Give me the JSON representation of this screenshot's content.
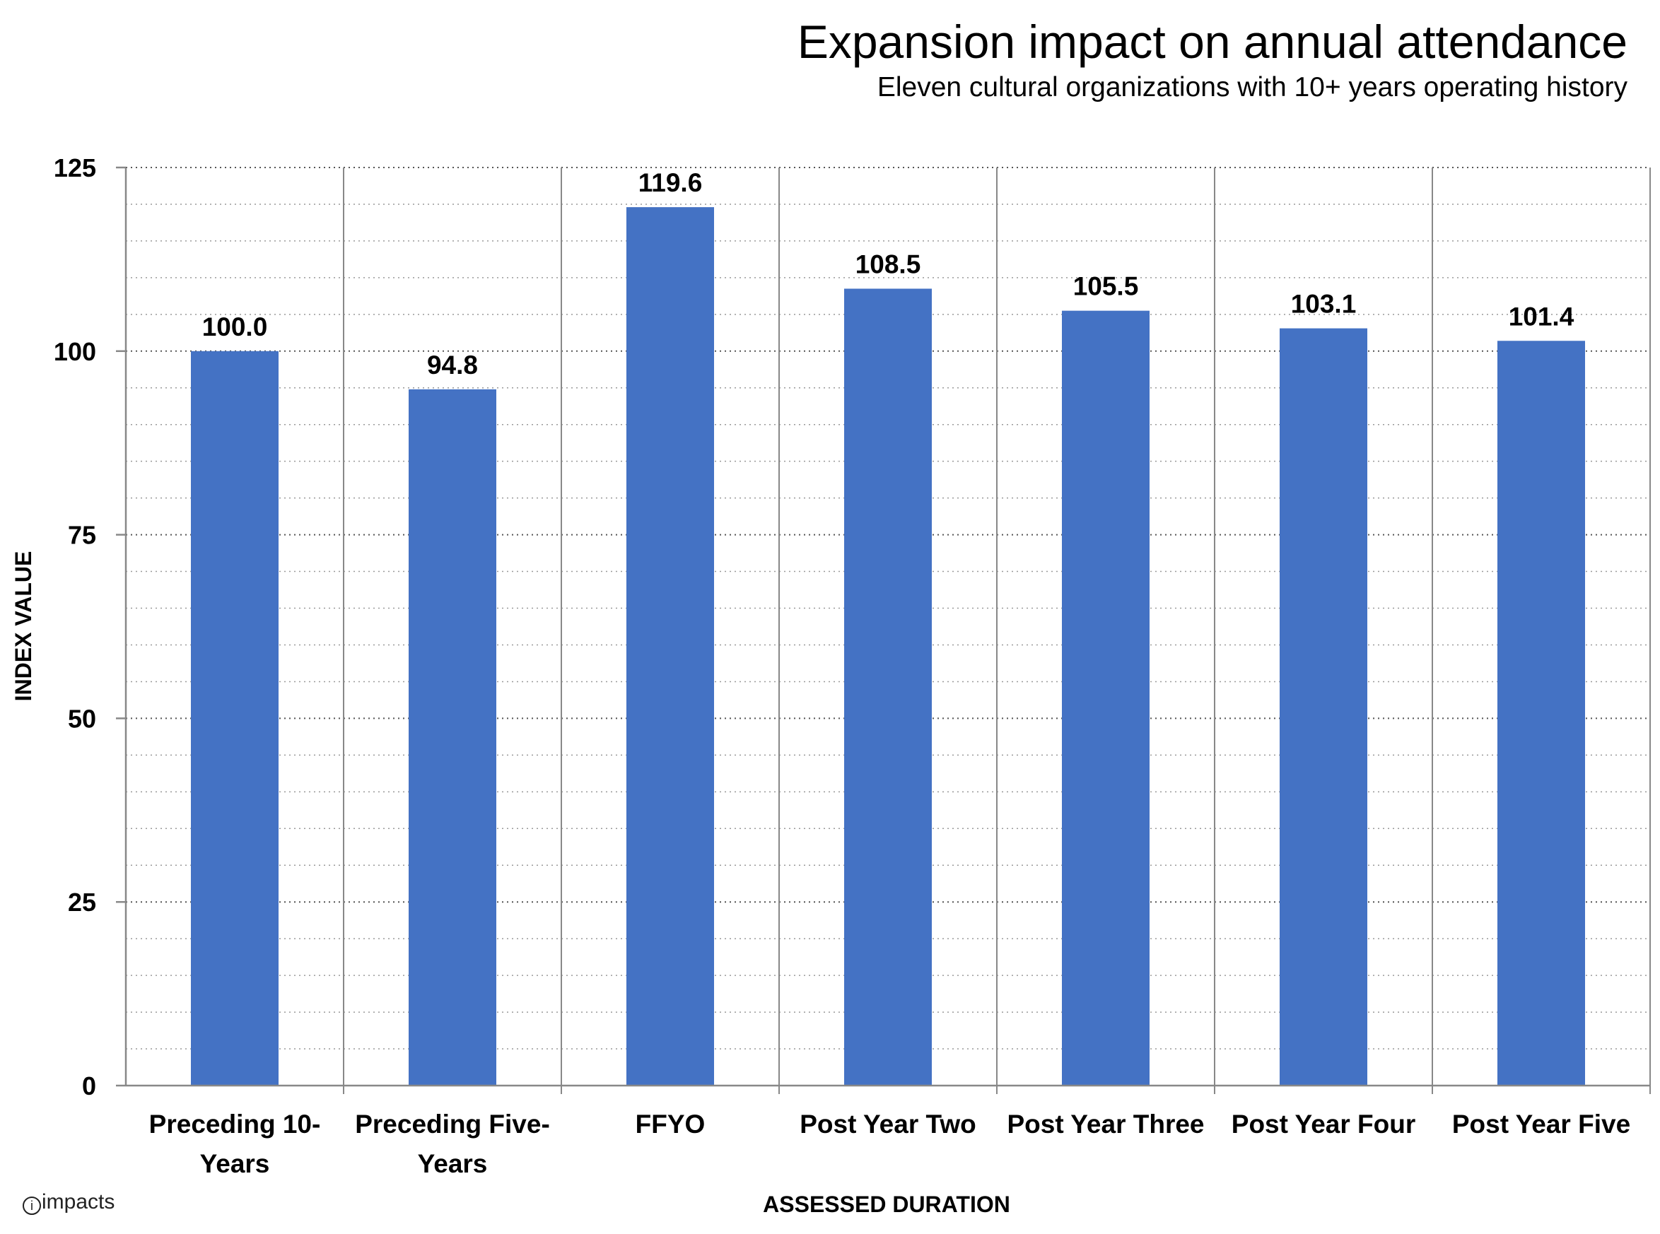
{
  "chart_data": {
    "type": "bar",
    "title": "Expansion impact on annual attendance",
    "subtitle": "Eleven cultural organizations with 10+ years operating history",
    "xlabel": "ASSESSED DURATION",
    "ylabel": "INDEX VALUE",
    "categories": [
      [
        "Preceding 10-",
        "Years"
      ],
      [
        "Preceding Five-",
        "Years"
      ],
      [
        "FFYO"
      ],
      [
        "Post Year Two"
      ],
      [
        "Post Year Three"
      ],
      [
        "Post Year Four"
      ],
      [
        "Post Year Five"
      ]
    ],
    "values": [
      100.0,
      94.8,
      119.6,
      108.5,
      105.5,
      103.1,
      101.4
    ],
    "value_labels": [
      "100.0",
      "94.8",
      "119.6",
      "108.5",
      "105.5",
      "103.1",
      "101.4"
    ],
    "ylim": [
      0,
      125
    ],
    "yticks": [
      "0",
      "25",
      "50",
      "75",
      "100",
      "125"
    ],
    "grid": true,
    "bar_color": "#4472C4"
  },
  "logo_text": "impacts"
}
